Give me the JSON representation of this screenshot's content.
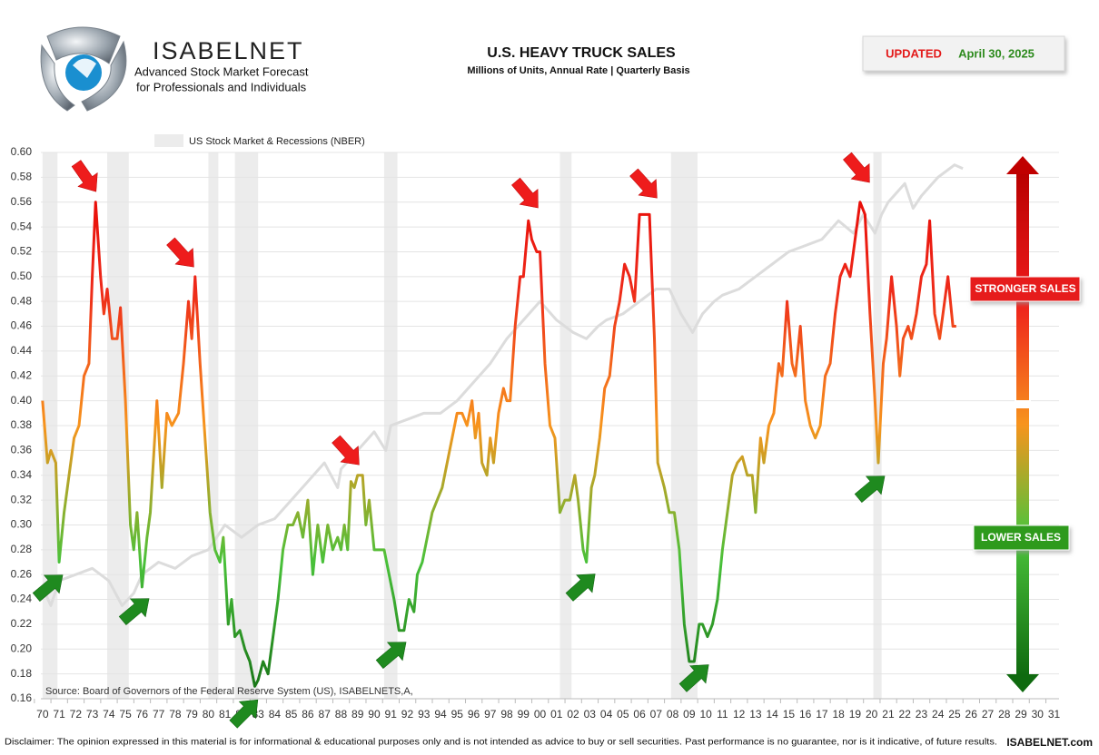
{
  "brand": {
    "name": "ISABELNET",
    "tagline_1": "Advanced Stock Market Forecast",
    "tagline_2": "for Professionals and Individuals"
  },
  "updated": {
    "label": "UPDATED",
    "date": "April 30, 2025"
  },
  "chart_data": {
    "type": "line",
    "title": "U.S. HEAVY TRUCK SALES",
    "subtitle": "Millions of Units, Annual Rate | Quarterly Basis",
    "source": "Source: Board of Governors of the Federal Reserve System (US), ISABELNETS,A,",
    "ylim": [
      0.16,
      0.6
    ],
    "yticks": [
      0.16,
      0.18,
      {
        "value": 0.2,
        "label": "0.20"
      },
      0.22,
      0.24,
      0.26,
      0.28,
      {
        "value": 0.3,
        "label": "0.30"
      },
      0.32,
      0.34,
      0.36,
      0.38,
      {
        "value": 0.4,
        "label": "0.40"
      },
      0.42,
      0.44,
      0.46,
      0.48,
      {
        "value": 0.5,
        "label": "0.50"
      },
      0.52,
      0.54,
      0.56,
      0.58,
      {
        "value": 0.6,
        "label": "0.60"
      }
    ],
    "xlim": [
      1969.9,
      2031.3
    ],
    "xticks": [
      {
        "value": 1970,
        "label": "70"
      },
      {
        "value": 1971,
        "label": "71"
      },
      {
        "value": 1972,
        "label": "72"
      },
      {
        "value": 1973,
        "label": "73"
      },
      {
        "value": 1974,
        "label": "74"
      },
      {
        "value": 1975,
        "label": "75"
      },
      {
        "value": 1976,
        "label": "76"
      },
      {
        "value": 1977,
        "label": "77"
      },
      {
        "value": 1978,
        "label": "78"
      },
      {
        "value": 1979,
        "label": "79"
      },
      {
        "value": 1980,
        "label": "80"
      },
      {
        "value": 1981,
        "label": "81"
      },
      {
        "value": 1982,
        "label": "82"
      },
      {
        "value": 1983,
        "label": "83"
      },
      {
        "value": 1984,
        "label": "84"
      },
      {
        "value": 1985,
        "label": "85"
      },
      {
        "value": 1986,
        "label": "86"
      },
      {
        "value": 1987,
        "label": "87"
      },
      {
        "value": 1988,
        "label": "88"
      },
      {
        "value": 1989,
        "label": "89"
      },
      {
        "value": 1990,
        "label": "90"
      },
      {
        "value": 1991,
        "label": "91"
      },
      {
        "value": 1992,
        "label": "92"
      },
      {
        "value": 1993,
        "label": "93"
      },
      {
        "value": 1994,
        "label": "94"
      },
      {
        "value": 1995,
        "label": "95"
      },
      {
        "value": 1996,
        "label": "96"
      },
      {
        "value": 1997,
        "label": "97"
      },
      {
        "value": 1998,
        "label": "98"
      },
      {
        "value": 1999,
        "label": "99"
      },
      {
        "value": 2000,
        "label": "00"
      },
      {
        "value": 2001,
        "label": "01"
      },
      {
        "value": 2002,
        "label": "02"
      },
      {
        "value": 2003,
        "label": "03"
      },
      {
        "value": 2004,
        "label": "04"
      },
      {
        "value": 2005,
        "label": "05"
      },
      {
        "value": 2006,
        "label": "06"
      },
      {
        "value": 2007,
        "label": "07"
      },
      {
        "value": 2008,
        "label": "08"
      },
      {
        "value": 2009,
        "label": "09"
      },
      {
        "value": 2010,
        "label": "10"
      },
      {
        "value": 2011,
        "label": "11"
      },
      {
        "value": 2012,
        "label": "12"
      },
      {
        "value": 2013,
        "label": "13"
      },
      {
        "value": 2014,
        "label": "14"
      },
      {
        "value": 2015,
        "label": "15"
      },
      {
        "value": 2016,
        "label": "16"
      },
      {
        "value": 2017,
        "label": "17"
      },
      {
        "value": 2018,
        "label": "18"
      },
      {
        "value": 2019,
        "label": "19"
      },
      {
        "value": 2020,
        "label": "20"
      },
      {
        "value": 2021,
        "label": "21"
      },
      {
        "value": 2022,
        "label": "22"
      },
      {
        "value": 2023,
        "label": "23"
      },
      {
        "value": 2024,
        "label": "24"
      },
      {
        "value": 2025,
        "label": "25"
      },
      {
        "value": 2026,
        "label": "26"
      },
      {
        "value": 2027,
        "label": "27"
      },
      {
        "value": 2028,
        "label": "28"
      },
      {
        "value": 2029,
        "label": "29"
      },
      {
        "value": 2030,
        "label": "30"
      },
      {
        "value": 2031,
        "label": "31"
      }
    ],
    "grid": true,
    "line_colors": [
      "#157015",
      "#49c13a",
      "#f7941d",
      "#ee2a1a",
      "#e60000"
    ],
    "x": [
      1970.0,
      1970.3,
      1970.5,
      1970.8,
      1971.0,
      1971.3,
      1971.6,
      1971.9,
      1972.2,
      1972.5,
      1972.8,
      1973.0,
      1973.2,
      1973.5,
      1973.7,
      1973.9,
      1974.2,
      1974.5,
      1974.7,
      1975.0,
      1975.3,
      1975.5,
      1975.7,
      1976.0,
      1976.3,
      1976.5,
      1976.9,
      1977.2,
      1977.5,
      1977.8,
      1978.2,
      1978.5,
      1978.8,
      1979.0,
      1979.2,
      1979.5,
      1979.8,
      1980.1,
      1980.4,
      1980.7,
      1980.9,
      1981.2,
      1981.4,
      1981.6,
      1981.9,
      1982.2,
      1982.5,
      1982.8,
      1983.0,
      1983.3,
      1983.6,
      1983.9,
      1984.2,
      1984.5,
      1984.8,
      1985.1,
      1985.4,
      1985.7,
      1986.0,
      1986.3,
      1986.6,
      1986.9,
      1987.2,
      1987.5,
      1987.8,
      1988.0,
      1988.2,
      1988.4,
      1988.6,
      1988.8,
      1989.0,
      1989.3,
      1989.5,
      1989.7,
      1990.0,
      1990.3,
      1990.6,
      1990.9,
      1991.2,
      1991.5,
      1991.8,
      1992.1,
      1992.4,
      1992.6,
      1992.9,
      1993.2,
      1993.5,
      1993.8,
      1994.1,
      1994.4,
      1994.7,
      1995.0,
      1995.3,
      1995.6,
      1995.9,
      1996.1,
      1996.3,
      1996.5,
      1996.8,
      1997.0,
      1997.2,
      1997.5,
      1997.8,
      1998.0,
      1998.2,
      1998.5,
      1998.8,
      1999.0,
      1999.3,
      1999.5,
      1999.8,
      2000.0,
      2000.3,
      2000.6,
      2000.9,
      2001.2,
      2001.5,
      2001.8,
      2002.1,
      2002.3,
      2002.6,
      2002.8,
      2003.1,
      2003.3,
      2003.6,
      2003.9,
      2004.2,
      2004.5,
      2004.8,
      2005.1,
      2005.4,
      2005.7,
      2006.0,
      2006.3,
      2006.6,
      2006.9,
      2007.1,
      2007.5,
      2007.8,
      2008.1,
      2008.4,
      2008.7,
      2009.0,
      2009.3,
      2009.6,
      2009.8,
      2010.1,
      2010.4,
      2010.7,
      2011.0,
      2011.3,
      2011.6,
      2011.9,
      2012.2,
      2012.5,
      2012.8,
      2013.0,
      2013.3,
      2013.5,
      2013.8,
      2014.1,
      2014.4,
      2014.6,
      2014.9,
      2015.2,
      2015.4,
      2015.7,
      2016.0,
      2016.3,
      2016.6,
      2016.9,
      2017.2,
      2017.5,
      2017.8,
      2018.1,
      2018.4,
      2018.7,
      2019.0,
      2019.3,
      2019.6,
      2019.9,
      2020.2,
      2020.4,
      2020.7,
      2020.9,
      2021.2,
      2021.5,
      2021.7,
      2021.9,
      2022.2,
      2022.4,
      2022.7,
      2023.0,
      2023.3,
      2023.5,
      2023.8,
      2024.1,
      2024.4,
      2024.6,
      2024.9,
      2025.1
    ],
    "values": [
      0.4,
      0.35,
      0.36,
      0.35,
      0.27,
      0.31,
      0.34,
      0.37,
      0.38,
      0.42,
      0.43,
      0.5,
      0.56,
      0.5,
      0.47,
      0.49,
      0.45,
      0.45,
      0.475,
      0.4,
      0.3,
      0.28,
      0.31,
      0.25,
      0.29,
      0.31,
      0.4,
      0.33,
      0.39,
      0.38,
      0.39,
      0.43,
      0.48,
      0.45,
      0.5,
      0.43,
      0.37,
      0.31,
      0.28,
      0.27,
      0.29,
      0.22,
      0.24,
      0.21,
      0.215,
      0.2,
      0.19,
      0.17,
      0.175,
      0.19,
      0.18,
      0.21,
      0.24,
      0.28,
      0.3,
      0.3,
      0.31,
      0.29,
      0.32,
      0.26,
      0.3,
      0.27,
      0.3,
      0.28,
      0.29,
      0.28,
      0.3,
      0.28,
      0.335,
      0.33,
      0.34,
      0.34,
      0.3,
      0.32,
      0.28,
      0.28,
      0.28,
      0.26,
      0.24,
      0.215,
      0.215,
      0.24,
      0.23,
      0.26,
      0.27,
      0.29,
      0.31,
      0.32,
      0.33,
      0.35,
      0.37,
      0.39,
      0.39,
      0.38,
      0.4,
      0.37,
      0.39,
      0.35,
      0.34,
      0.37,
      0.35,
      0.39,
      0.41,
      0.4,
      0.4,
      0.46,
      0.5,
      0.5,
      0.545,
      0.53,
      0.52,
      0.52,
      0.43,
      0.38,
      0.37,
      0.31,
      0.32,
      0.32,
      0.34,
      0.32,
      0.28,
      0.27,
      0.33,
      0.34,
      0.37,
      0.41,
      0.42,
      0.46,
      0.48,
      0.51,
      0.5,
      0.48,
      0.55,
      0.55,
      0.55,
      0.45,
      0.35,
      0.33,
      0.31,
      0.31,
      0.28,
      0.22,
      0.19,
      0.19,
      0.22,
      0.22,
      0.21,
      0.22,
      0.24,
      0.28,
      0.31,
      0.34,
      0.35,
      0.355,
      0.34,
      0.34,
      0.31,
      0.37,
      0.35,
      0.38,
      0.39,
      0.43,
      0.42,
      0.48,
      0.43,
      0.42,
      0.46,
      0.4,
      0.38,
      0.37,
      0.38,
      0.42,
      0.43,
      0.47,
      0.5,
      0.51,
      0.5,
      0.53,
      0.56,
      0.55,
      0.47,
      0.4,
      0.35,
      0.43,
      0.45,
      0.5,
      0.46,
      0.42,
      0.45,
      0.46,
      0.45,
      0.47,
      0.5,
      0.51,
      0.545,
      0.47,
      0.45,
      0.48,
      0.5,
      0.46,
      0.46
    ],
    "stock_market": {
      "name": "US Stock Market & Recessions (NBER)",
      "color": "#dcdcdc",
      "x": [
        1970,
        1970.5,
        1971,
        1972,
        1973,
        1974,
        1974.8,
        1975.5,
        1976,
        1977,
        1978,
        1979,
        1980,
        1980.5,
        1981,
        1982,
        1983,
        1984,
        1985,
        1986,
        1987,
        1987.8,
        1988,
        1989,
        1990,
        1990.7,
        1991,
        1992,
        1993,
        1994,
        1995,
        1996,
        1997,
        1998,
        1999,
        2000,
        2001,
        2002,
        2002.8,
        2003.5,
        2004,
        2005,
        2006,
        2007,
        2007.8,
        2008.5,
        2009.2,
        2009.8,
        2010.5,
        2011,
        2012,
        2013,
        2014,
        2015,
        2016,
        2017,
        2018,
        2018.9,
        2019.5,
        2020.2,
        2020.6,
        2021,
        2022,
        2022.5,
        2023,
        2024,
        2025,
        2025.5
      ],
      "values": [
        0.25,
        0.235,
        0.255,
        0.26,
        0.265,
        0.255,
        0.235,
        0.245,
        0.26,
        0.27,
        0.265,
        0.275,
        0.28,
        0.29,
        0.3,
        0.29,
        0.3,
        0.305,
        0.32,
        0.335,
        0.35,
        0.33,
        0.345,
        0.36,
        0.375,
        0.36,
        0.38,
        0.385,
        0.39,
        0.39,
        0.4,
        0.415,
        0.43,
        0.45,
        0.465,
        0.48,
        0.465,
        0.455,
        0.45,
        0.46,
        0.465,
        0.47,
        0.48,
        0.49,
        0.49,
        0.47,
        0.455,
        0.47,
        0.48,
        0.485,
        0.49,
        0.5,
        0.51,
        0.52,
        0.525,
        0.53,
        0.545,
        0.535,
        0.55,
        0.535,
        0.55,
        0.56,
        0.575,
        0.555,
        0.565,
        0.58,
        0.59,
        0.587
      ]
    },
    "recessions": [
      [
        1970.0,
        1970.9
      ],
      [
        1973.9,
        1975.2
      ],
      [
        1980.0,
        1980.6
      ],
      [
        1981.6,
        1983.0
      ],
      [
        1990.6,
        1991.4
      ],
      [
        2001.2,
        2001.9
      ],
      [
        2007.9,
        2009.5
      ],
      [
        2020.1,
        2020.6
      ]
    ],
    "scale_labels": {
      "high": "STRONGER SALES",
      "low": "LOWER SALES"
    }
  },
  "disclaimer": "Disclaimer: The opinion expressed in this material is for informational & educational purposes only and is not intended as advice to buy or sell securities. Past performance is no guarantee, nor is it indicative, of future results.",
  "website": "ISABELNET.com"
}
